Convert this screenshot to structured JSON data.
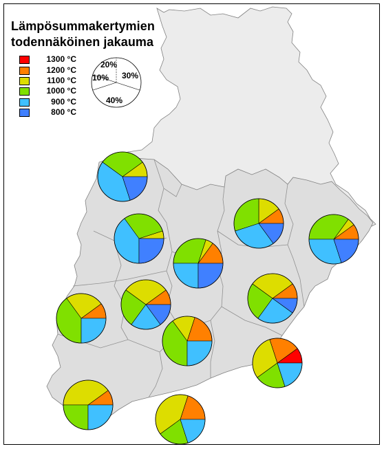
{
  "title_line1": "Lämpösummakertymien",
  "title_line2": "todennäköinen jakauma",
  "legend": [
    {
      "label": "1300 °C",
      "color": "#ff0000"
    },
    {
      "label": "1200 °C",
      "color": "#ff8000"
    },
    {
      "label": "1100 °C",
      "color": "#dddd00"
    },
    {
      "label": "1000 °C",
      "color": "#80e000"
    },
    {
      "label": "900 °C",
      "color": "#40c0ff"
    },
    {
      "label": "800 °C",
      "color": "#4080ff"
    }
  ],
  "example_pie": {
    "slices": [
      {
        "label": "20%",
        "fraction": 0.2
      },
      {
        "label": "30%",
        "fraction": 0.3
      },
      {
        "label": "40%",
        "fraction": 0.4
      },
      {
        "label": "10%",
        "fraction": 0.1
      }
    ]
  },
  "pies": [
    {
      "name": "pie-north",
      "values": {
        "1300": 0,
        "1200": 0,
        "1100": 0.1,
        "1000": 0.3,
        "900": 0.4,
        "800": 0.2
      }
    },
    {
      "name": "pie-west-upper",
      "values": {
        "1300": 0,
        "1200": 0,
        "1100": 0.05,
        "1000": 0.3,
        "900": 0.4,
        "800": 0.25
      }
    },
    {
      "name": "pie-central",
      "values": {
        "1300": 0,
        "1200": 0.15,
        "1100": 0.05,
        "1000": 0.3,
        "900": 0.25,
        "800": 0.25
      }
    },
    {
      "name": "pie-northeast",
      "values": {
        "1300": 0,
        "1200": 0.1,
        "1100": 0.15,
        "1000": 0.3,
        "900": 0.3,
        "800": 0.15
      }
    },
    {
      "name": "pie-east",
      "values": {
        "1300": 0,
        "1200": 0.1,
        "1100": 0.05,
        "1000": 0.35,
        "900": 0.3,
        "800": 0.2
      }
    },
    {
      "name": "pie-west-middle",
      "values": {
        "1300": 0,
        "1200": 0.1,
        "1100": 0.25,
        "1000": 0.4,
        "900": 0.25,
        "800": 0
      }
    },
    {
      "name": "pie-central-south",
      "values": {
        "1300": 0,
        "1200": 0.1,
        "1100": 0.3,
        "1000": 0.25,
        "900": 0.2,
        "800": 0.15
      }
    },
    {
      "name": "pie-savo",
      "values": {
        "1300": 0,
        "1200": 0.1,
        "1100": 0.3,
        "1000": 0.25,
        "900": 0.25,
        "800": 0.1
      }
    },
    {
      "name": "pie-hame",
      "values": {
        "1300": 0,
        "1200": 0.2,
        "1100": 0.15,
        "1000": 0.4,
        "900": 0.25,
        "800": 0
      }
    },
    {
      "name": "pie-karelia-south",
      "values": {
        "1300": 0.1,
        "1200": 0.2,
        "1100": 0.3,
        "1000": 0.2,
        "900": 0.2,
        "800": 0
      }
    },
    {
      "name": "pie-southwest",
      "values": {
        "1300": 0,
        "1200": 0.1,
        "1100": 0.4,
        "1000": 0.25,
        "900": 0.25,
        "800": 0
      }
    },
    {
      "name": "pie-uusimaa",
      "values": {
        "1300": 0,
        "1200": 0.2,
        "1100": 0.4,
        "1000": 0.2,
        "900": 0.2,
        "800": 0
      }
    }
  ]
}
